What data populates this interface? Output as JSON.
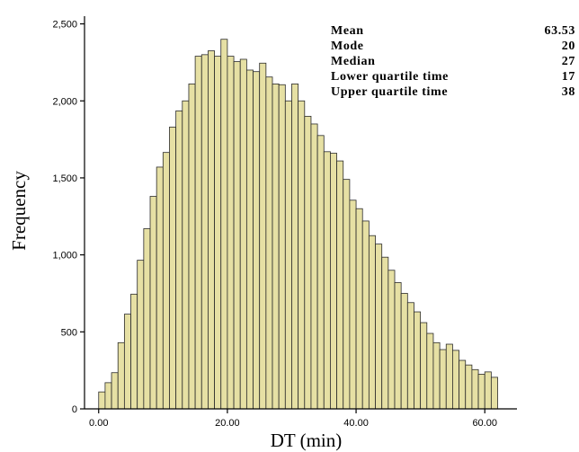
{
  "chart_data": {
    "type": "bar",
    "xlabel": "DT (min)",
    "ylabel": "Frequency",
    "bin_width": 1,
    "x_range": [
      -2.2,
      65
    ],
    "ylim": [
      0,
      2550
    ],
    "x_ticks": [
      0,
      20,
      40,
      60
    ],
    "x_tick_labels": [
      "0.00",
      "20.00",
      "40.00",
      "60.00"
    ],
    "y_ticks": [
      0,
      500,
      1000,
      1500,
      2000,
      2500
    ],
    "y_tick_labels": [
      "0",
      "500",
      "1,000",
      "1,500",
      "2,000",
      "2,500"
    ],
    "bins": [
      {
        "x": 0.5,
        "value": 110
      },
      {
        "x": 1.5,
        "value": 170
      },
      {
        "x": 2.5,
        "value": 235
      },
      {
        "x": 3.5,
        "value": 430
      },
      {
        "x": 4.5,
        "value": 615
      },
      {
        "x": 5.5,
        "value": 745
      },
      {
        "x": 6.5,
        "value": 965
      },
      {
        "x": 7.5,
        "value": 1170
      },
      {
        "x": 8.5,
        "value": 1380
      },
      {
        "x": 9.5,
        "value": 1570
      },
      {
        "x": 10.5,
        "value": 1665
      },
      {
        "x": 11.5,
        "value": 1830
      },
      {
        "x": 12.5,
        "value": 1935
      },
      {
        "x": 13.5,
        "value": 2000
      },
      {
        "x": 14.5,
        "value": 2110
      },
      {
        "x": 15.5,
        "value": 2290
      },
      {
        "x": 16.5,
        "value": 2300
      },
      {
        "x": 17.5,
        "value": 2325
      },
      {
        "x": 18.5,
        "value": 2290
      },
      {
        "x": 19.5,
        "value": 2400
      },
      {
        "x": 20.5,
        "value": 2290
      },
      {
        "x": 21.5,
        "value": 2255
      },
      {
        "x": 22.5,
        "value": 2270
      },
      {
        "x": 23.5,
        "value": 2200
      },
      {
        "x": 24.5,
        "value": 2190
      },
      {
        "x": 25.5,
        "value": 2245
      },
      {
        "x": 26.5,
        "value": 2155
      },
      {
        "x": 27.5,
        "value": 2110
      },
      {
        "x": 28.5,
        "value": 2105
      },
      {
        "x": 29.5,
        "value": 2000
      },
      {
        "x": 30.5,
        "value": 2110
      },
      {
        "x": 31.5,
        "value": 2000
      },
      {
        "x": 32.5,
        "value": 1900
      },
      {
        "x": 33.5,
        "value": 1850
      },
      {
        "x": 34.5,
        "value": 1775
      },
      {
        "x": 35.5,
        "value": 1670
      },
      {
        "x": 36.5,
        "value": 1660
      },
      {
        "x": 37.5,
        "value": 1610
      },
      {
        "x": 38.5,
        "value": 1490
      },
      {
        "x": 39.5,
        "value": 1355
      },
      {
        "x": 40.5,
        "value": 1300
      },
      {
        "x": 41.5,
        "value": 1220
      },
      {
        "x": 42.5,
        "value": 1125
      },
      {
        "x": 43.5,
        "value": 1070
      },
      {
        "x": 44.5,
        "value": 985
      },
      {
        "x": 45.5,
        "value": 900
      },
      {
        "x": 46.5,
        "value": 820
      },
      {
        "x": 47.5,
        "value": 750
      },
      {
        "x": 48.5,
        "value": 690
      },
      {
        "x": 49.5,
        "value": 630
      },
      {
        "x": 50.5,
        "value": 560
      },
      {
        "x": 51.5,
        "value": 490
      },
      {
        "x": 52.5,
        "value": 430
      },
      {
        "x": 53.5,
        "value": 385
      },
      {
        "x": 54.5,
        "value": 420
      },
      {
        "x": 55.5,
        "value": 380
      },
      {
        "x": 56.5,
        "value": 315
      },
      {
        "x": 57.5,
        "value": 285
      },
      {
        "x": 58.5,
        "value": 255
      },
      {
        "x": 59.5,
        "value": 225
      },
      {
        "x": 60.5,
        "value": 240
      },
      {
        "x": 61.5,
        "value": 205
      }
    ],
    "stats": [
      {
        "label": "Mean",
        "value": "63.53"
      },
      {
        "label": "Mode",
        "value": "20"
      },
      {
        "label": "Median",
        "value": "27"
      },
      {
        "label": "Lower quartile time",
        "value": "17"
      },
      {
        "label": "Upper quartile time",
        "value": "38"
      }
    ],
    "colors": {
      "bar_fill": "#e6e0a4",
      "bar_stroke": "#2b2b2b",
      "axis": "#000000"
    }
  }
}
